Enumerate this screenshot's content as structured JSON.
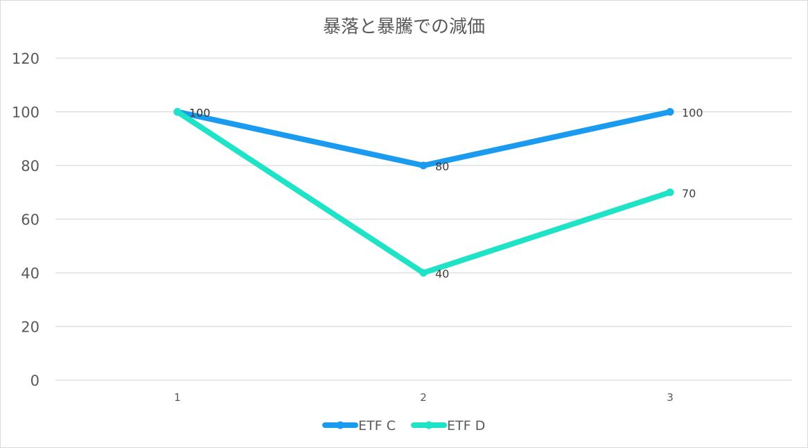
{
  "chart_data": {
    "type": "line",
    "title": "暴落と暴騰での減価",
    "xlabel": "",
    "ylabel": "",
    "categories": [
      "1",
      "2",
      "3"
    ],
    "ylim": [
      0,
      120
    ],
    "yticks": [
      0,
      20,
      40,
      60,
      80,
      100,
      120
    ],
    "grid": true,
    "legend_position": "bottom",
    "data_labels": true,
    "series": [
      {
        "name": "ETF C",
        "values": [
          100,
          80,
          100
        ],
        "color": "#1a9bf0"
      },
      {
        "name": "ETF D",
        "values": [
          100,
          40,
          70
        ],
        "color": "#1ee3c6"
      }
    ]
  }
}
